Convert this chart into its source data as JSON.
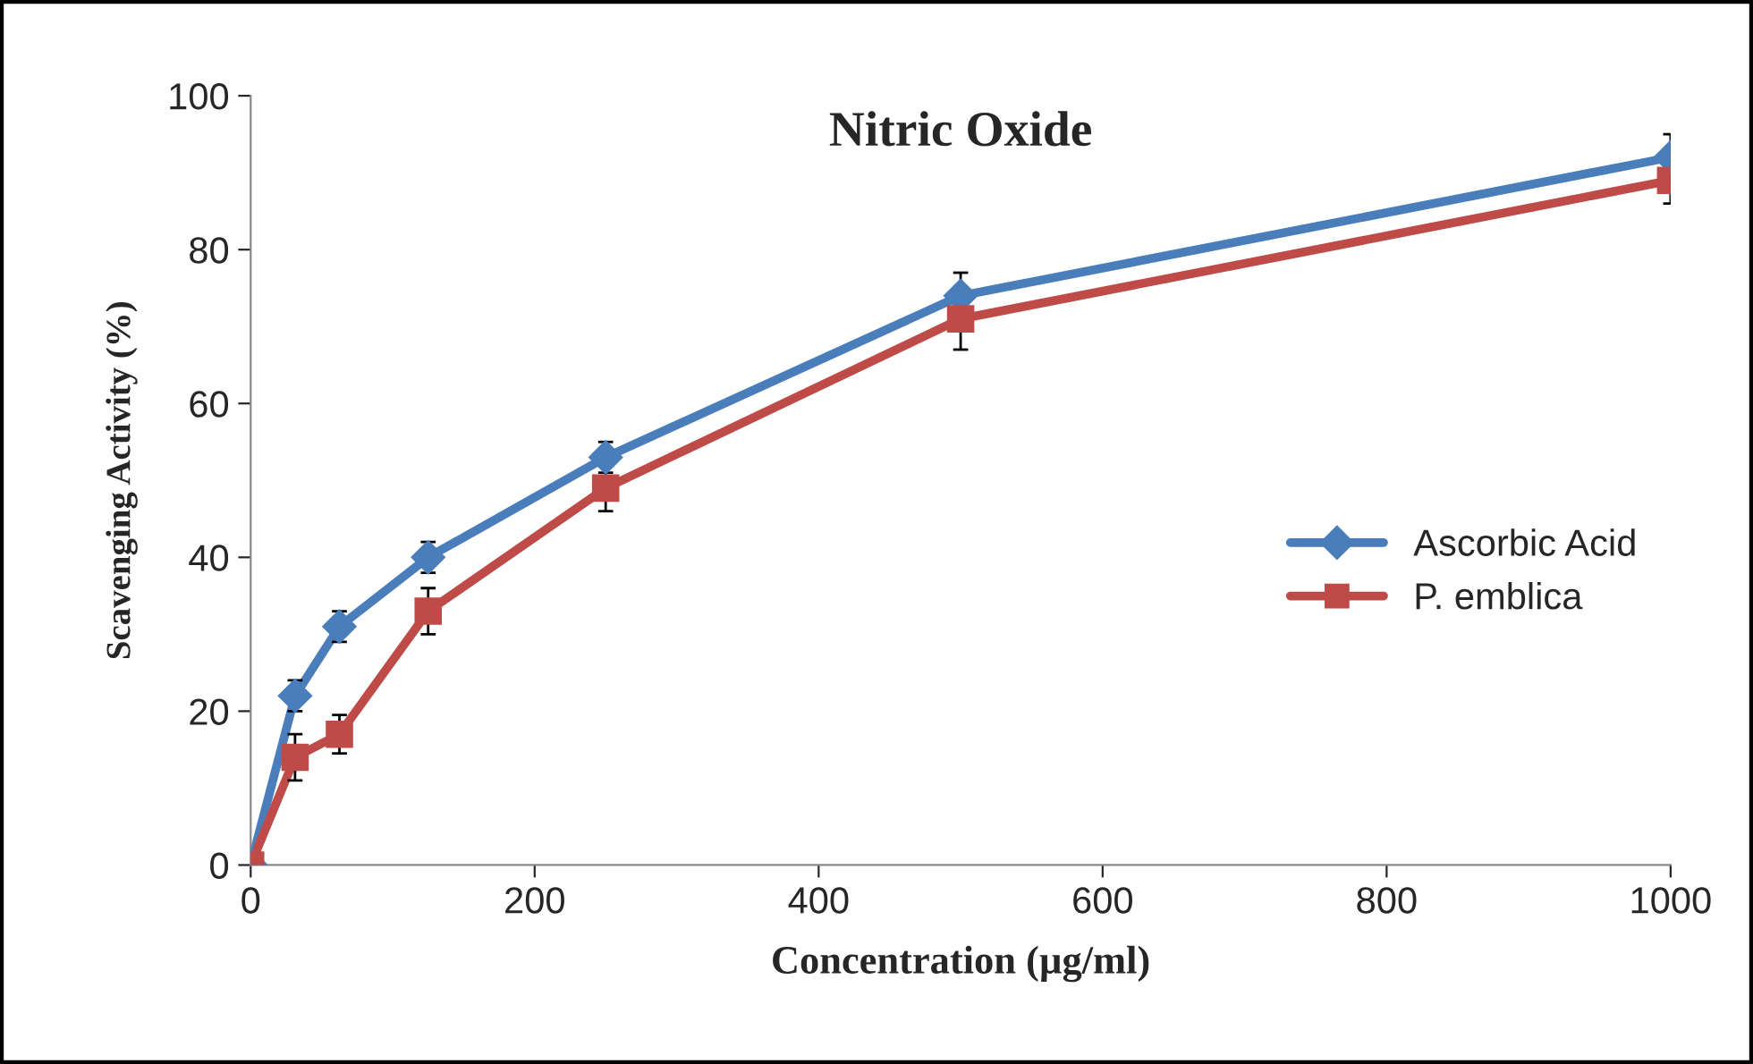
{
  "chart_data": {
    "type": "line",
    "title": "Nitric Oxide",
    "xlabel": "Concentration (µg/ml)",
    "ylabel": "Scavenging Activity (%)",
    "x": [
      0,
      31.25,
      62.5,
      125,
      250,
      500,
      1000
    ],
    "series": [
      {
        "name": "Ascorbic Acid",
        "color": "#4a7ebb",
        "marker": "diamond",
        "values": [
          0,
          22,
          31,
          40,
          53,
          74,
          92
        ],
        "errors": [
          null,
          2,
          2,
          2,
          2,
          3,
          3
        ]
      },
      {
        "name": "P. emblica",
        "color": "#be4b48",
        "marker": "square",
        "values": [
          0,
          14,
          17,
          33,
          49,
          71,
          89
        ],
        "errors": [
          null,
          3,
          2.5,
          3,
          3,
          4,
          3
        ]
      }
    ],
    "xlim": [
      0,
      1000
    ],
    "xticks": [
      0,
      200,
      400,
      600,
      800,
      1000
    ],
    "ylim": [
      0,
      100
    ],
    "yticks": [
      0,
      20,
      40,
      60,
      80,
      100
    ],
    "grid": false,
    "legend": "right",
    "line_style": "solid"
  }
}
